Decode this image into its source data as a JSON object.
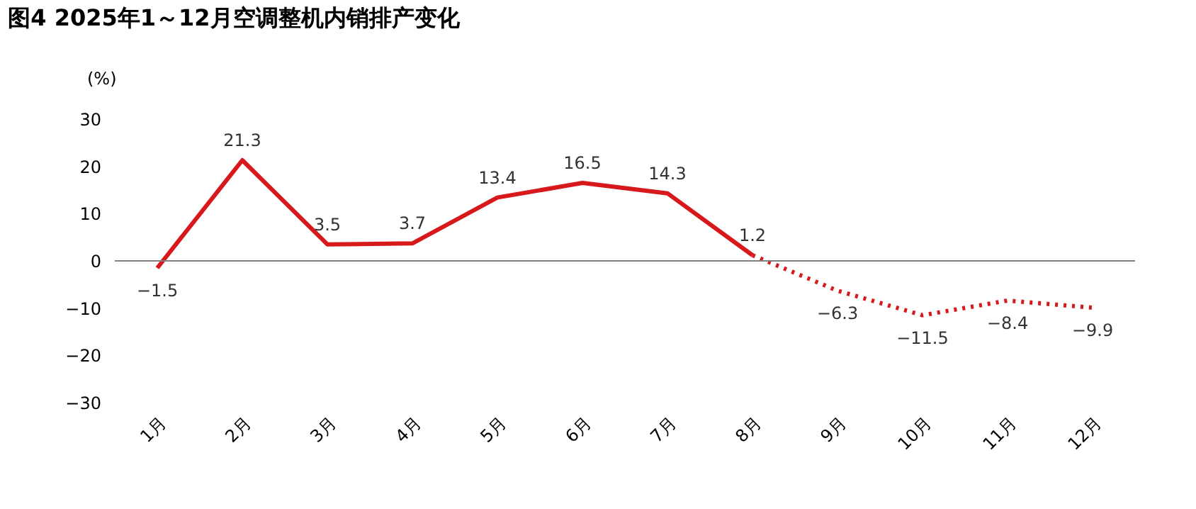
{
  "chart_data": {
    "type": "line",
    "title": "图4  2025年1～12月空调整机内销排产变化",
    "ylabel": "(%)",
    "categories": [
      "1月",
      "2月",
      "3月",
      "4月",
      "5月",
      "6月",
      "7月",
      "8月",
      "9月",
      "10月",
      "11月",
      "12月"
    ],
    "series": [
      {
        "color": "#d7191c",
        "line_style": "solid",
        "values": [
          -1.5,
          21.3,
          3.5,
          3.7,
          13.4,
          16.5,
          14.3,
          1.2,
          null,
          null,
          null,
          null
        ],
        "value_labels": [
          "−1.5",
          "21.3",
          "3.5",
          "3.7",
          "13.4",
          "16.5",
          "14.3",
          "1.2",
          null,
          null,
          null,
          null
        ]
      },
      {
        "color": "#d7191c",
        "line_style": "dotted",
        "values": [
          null,
          null,
          null,
          null,
          null,
          null,
          null,
          1.2,
          -6.3,
          -11.5,
          -8.4,
          -9.9
        ],
        "value_labels": [
          null,
          null,
          null,
          null,
          null,
          null,
          null,
          null,
          "−6.3",
          "−11.5",
          "−8.4",
          "−9.9"
        ]
      }
    ],
    "ylim": [
      -30,
      30
    ],
    "yticks": [
      -30,
      -20,
      -10,
      0,
      10,
      20,
      30
    ],
    "ref_lines": [
      {
        "axis": "y",
        "value": 0,
        "color": "#808080"
      }
    ],
    "grid": false,
    "marker": "none"
  }
}
